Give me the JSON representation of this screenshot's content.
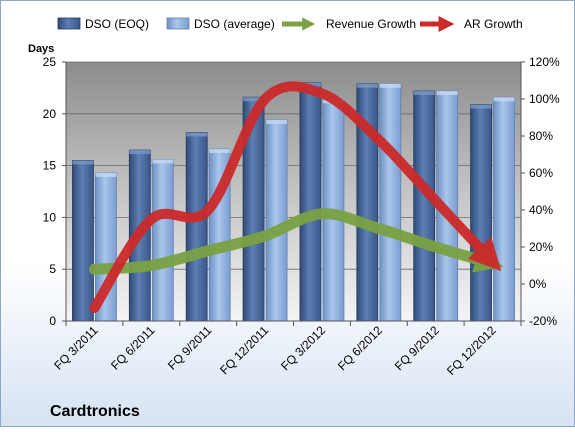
{
  "chart_data": {
    "type": "bar",
    "company": "Cardtronics",
    "left_axis_title": "Days",
    "categories": [
      "FQ 3/2011",
      "FQ 6/2011",
      "FQ 9/2011",
      "FQ 12/2011",
      "FQ 3/2012",
      "FQ 6/2012",
      "FQ 9/2012",
      "FQ 12/2012"
    ],
    "y_left": {
      "min": 0,
      "max": 25,
      "ticks": [
        "0",
        "5",
        "10",
        "15",
        "20",
        "25"
      ],
      "tick_values": [
        0,
        5,
        10,
        15,
        20,
        25
      ]
    },
    "y_right": {
      "min": -20,
      "max": 120,
      "ticks": [
        "-20%",
        "0%",
        "20%",
        "40%",
        "60%",
        "80%",
        "100%",
        "120%"
      ],
      "tick_values": [
        -20,
        0,
        20,
        40,
        60,
        80,
        100,
        120
      ]
    },
    "bar_series": [
      {
        "name": "DSO (EOQ)",
        "color": "#4a6a9c",
        "values": [
          15.5,
          16.5,
          18.2,
          21.6,
          23.0,
          22.9,
          22.2,
          20.9
        ]
      },
      {
        "name": "DSO (average)",
        "color": "#92b4e0",
        "values": [
          14.3,
          15.6,
          16.6,
          19.4,
          21.4,
          22.9,
          22.2,
          21.6
        ]
      }
    ],
    "line_series": [
      {
        "name": "Revenue Growth",
        "color": "#7aa244",
        "axis": "right",
        "values": [
          8,
          10,
          18,
          26,
          38,
          30,
          20,
          11
        ]
      },
      {
        "name": "AR Growth",
        "color": "#cc2a2a",
        "axis": "right",
        "values": [
          -13,
          35,
          40,
          100,
          103,
          78,
          45,
          12
        ]
      }
    ],
    "legend_position": "top",
    "grid": true
  }
}
